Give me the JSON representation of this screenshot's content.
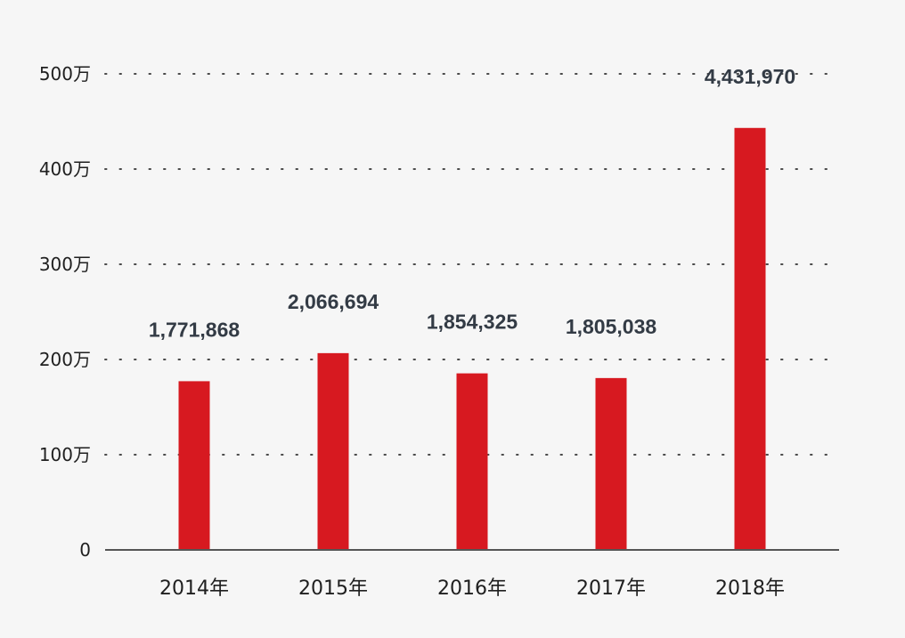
{
  "chart_data": {
    "type": "bar",
    "categories": [
      "2014年",
      "2015年",
      "2016年",
      "2017年",
      "2018年"
    ],
    "values": [
      1771868,
      2066694,
      1854325,
      1805038,
      4431970
    ],
    "value_labels": [
      "1,771,868",
      "2,066,694",
      "1,854,325",
      "1,805,038",
      "4,431,970"
    ],
    "ylim": [
      0,
      5000000
    ],
    "yticks": [
      {
        "value": 0,
        "label": "0"
      },
      {
        "value": 1000000,
        "label": "100万"
      },
      {
        "value": 2000000,
        "label": "200万"
      },
      {
        "value": 3000000,
        "label": "300万"
      },
      {
        "value": 4000000,
        "label": "400万"
      },
      {
        "value": 5000000,
        "label": "500万"
      }
    ],
    "grid": true,
    "bar_color": "#d71920"
  }
}
